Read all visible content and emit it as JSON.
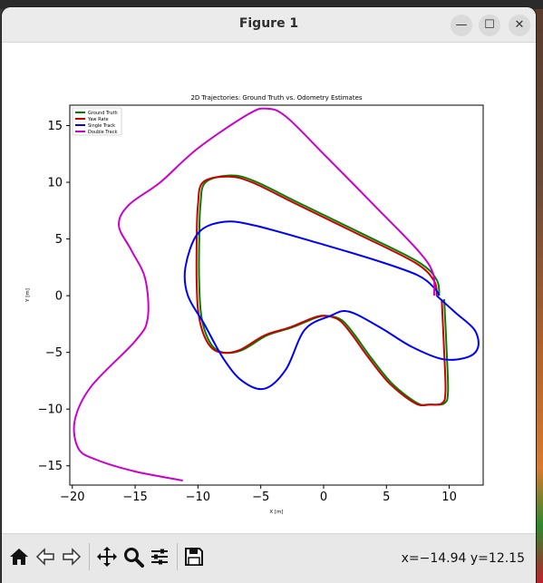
{
  "window": {
    "title": "Figure 1",
    "minimize_glyph": "—",
    "maximize_glyph": "☐",
    "close_glyph": "✕"
  },
  "toolbar": {
    "icons": [
      "home-icon",
      "back-icon",
      "forward-icon",
      "pan-icon",
      "zoom-icon",
      "configure-subplots-icon",
      "save-icon"
    ],
    "coords_text": "x=−14.94 y=12.15"
  },
  "chart_data": {
    "type": "line",
    "title": "2D Trajectories: Ground Truth vs. Odometry Estimates",
    "xlabel": "X [m]",
    "ylabel": "Y [m]",
    "xlim": [
      -20.2,
      12.7
    ],
    "ylim": [
      -16.7,
      16.8
    ],
    "xticks": [
      -20,
      -15,
      -10,
      -5,
      0,
      5,
      10
    ],
    "yticks": [
      -15,
      -10,
      -5,
      0,
      5,
      10,
      15
    ],
    "xtick_labels": [
      "−20",
      "−15",
      "−10",
      "−5",
      "0",
      "5",
      "10"
    ],
    "ytick_labels": [
      "−15",
      "−10",
      "−5",
      "0",
      "5",
      "10",
      "15"
    ],
    "grid": false,
    "legend_position": "top-left",
    "series": [
      {
        "name": "Ground Truth",
        "color": "#008000",
        "x": [
          9.6,
          9.8,
          9.9,
          9.6,
          8.5,
          7.5,
          5.5,
          3.8,
          2.5,
          1.5,
          0.5,
          -0.5,
          -2.5,
          -4.5,
          -6.5,
          -8.0,
          -9.0,
          -9.7,
          -9.9,
          -9.9,
          -9.8,
          -9.4,
          -7.4,
          -5.5,
          -2.0,
          3.0,
          7.5,
          9.0,
          9.2
        ],
        "y": [
          -0.3,
          -5.0,
          -8.5,
          -9.5,
          -9.6,
          -9.5,
          -7.8,
          -5.5,
          -3.5,
          -2.2,
          -1.8,
          -1.9,
          -2.8,
          -3.5,
          -4.8,
          -5.0,
          -4.2,
          -2.0,
          1.0,
          5.0,
          8.0,
          10.0,
          10.6,
          10.1,
          8.2,
          5.5,
          3.0,
          1.4,
          0.0
        ]
      },
      {
        "name": "Yaw Rate",
        "color": "#cc0000",
        "x": [
          9.4,
          9.6,
          9.7,
          9.4,
          8.3,
          7.3,
          5.3,
          3.6,
          2.3,
          1.3,
          0.3,
          -0.7,
          -2.7,
          -4.7,
          -6.7,
          -8.2,
          -9.2,
          -9.9,
          -10.1,
          -10.1,
          -10.0,
          -9.6,
          -7.6,
          -5.7,
          -2.2,
          2.8,
          7.3,
          8.8,
          9.0
        ],
        "y": [
          -0.3,
          -5.0,
          -8.5,
          -9.5,
          -9.6,
          -9.5,
          -7.8,
          -5.5,
          -3.5,
          -2.2,
          -1.8,
          -1.9,
          -2.8,
          -3.5,
          -4.8,
          -5.0,
          -4.2,
          -2.0,
          1.0,
          5.0,
          8.0,
          10.0,
          10.5,
          10.0,
          8.1,
          5.4,
          2.9,
          1.3,
          0.0
        ]
      },
      {
        "name": "Single Track",
        "color": "#0000ff",
        "x": [
          9.0,
          10.5,
          12.0,
          12.3,
          11.5,
          9.5,
          7.0,
          4.5,
          2.0,
          0.5,
          -1.5,
          -3.0,
          -4.7,
          -6.5,
          -8.0,
          -9.5,
          -10.8,
          -11.0,
          -10.0,
          -8.0,
          -5.5,
          0.0,
          4.5,
          7.5,
          8.8,
          9.2
        ],
        "y": [
          0.0,
          -1.5,
          -3.0,
          -4.5,
          -5.4,
          -5.6,
          -4.5,
          -2.8,
          -1.4,
          -1.8,
          -3.0,
          -6.5,
          -8.2,
          -7.5,
          -5.5,
          -2.5,
          0.0,
          2.5,
          5.5,
          6.5,
          6.2,
          4.5,
          3.0,
          1.8,
          0.7,
          0.0
        ]
      },
      {
        "name": "Double Track",
        "color": "#cc00cc",
        "x": [
          8.8,
          8.7,
          7.5,
          4.0,
          0.0,
          -3.0,
          -4.5,
          -6.0,
          -10.0,
          -13.0,
          -15.5,
          -16.3,
          -15.3,
          -14.2,
          -14.0,
          -15.0,
          -18.5,
          -19.8,
          -19.5,
          -18.0,
          -15.0,
          -11.2
        ],
        "y": [
          0.0,
          2.0,
          4.0,
          8.0,
          12.5,
          15.8,
          16.5,
          16.0,
          13.0,
          10.0,
          8.0,
          6.2,
          4.0,
          1.5,
          -2.0,
          -4.0,
          -8.0,
          -11.0,
          -13.5,
          -14.5,
          -15.5,
          -16.3
        ]
      }
    ]
  }
}
